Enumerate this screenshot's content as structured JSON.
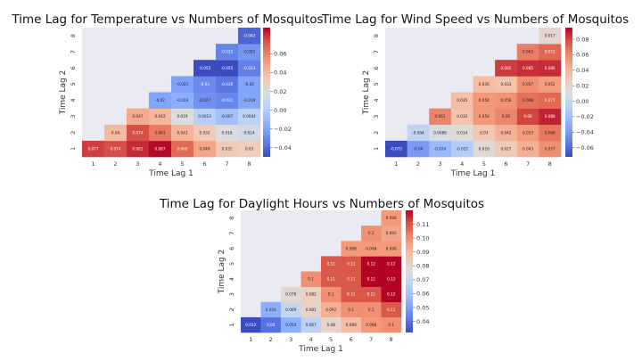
{
  "chart_data": [
    {
      "type": "heatmap",
      "title": "Time Lag for Temperature vs Numbers of Mosquitos",
      "xlabel": "Time Lag 1",
      "ylabel": "Time Lag 2",
      "x_ticks": [
        "1",
        "2",
        "3",
        "4",
        "5",
        "6",
        "7",
        "8"
      ],
      "y_ticks": [
        "1",
        "2",
        "3",
        "4",
        "5",
        "6",
        "7",
        "8"
      ],
      "colormap": "coolwarm",
      "vmin": -0.05,
      "vmax": 0.088,
      "colorbar_ticks": [
        "0.06",
        "0.04",
        "0.02",
        "0.00",
        "−0.02",
        "−0.04"
      ],
      "colorbar_tick_values": [
        0.06,
        0.04,
        0.02,
        0.0,
        -0.02,
        -0.04
      ],
      "rows": [
        {
          "y": "1",
          "values": [
            "0.077",
            "0.074",
            "0.081",
            "0.087",
            "0.068",
            "0.049",
            "0.032",
            "0.03"
          ]
        },
        {
          "y": "2",
          "values": [
            null,
            "0.04",
            "0.074",
            "0.063",
            "0.043",
            "0.032",
            "0.018",
            "0.014"
          ]
        },
        {
          "y": "3",
          "values": [
            null,
            null,
            "0.047",
            "0.042",
            "0.019",
            "0.0013",
            "-0.007",
            "0.0044"
          ]
        },
        {
          "y": "4",
          "values": [
            null,
            null,
            null,
            "-0.02",
            "-0.016",
            "-0.027",
            "-0.031",
            "-0.019"
          ]
        },
        {
          "y": "5",
          "values": [
            null,
            null,
            null,
            null,
            "-0.021",
            "-0.03",
            "-0.036",
            "-0.02"
          ]
        },
        {
          "y": "6",
          "values": [
            null,
            null,
            null,
            null,
            null,
            "-0.055",
            "-0.055",
            "-0.033"
          ]
        },
        {
          "y": "7",
          "values": [
            null,
            null,
            null,
            null,
            null,
            null,
            "-0.032",
            "-0.025"
          ]
        },
        {
          "y": "8",
          "values": [
            null,
            null,
            null,
            null,
            null,
            null,
            null,
            "-0.042"
          ]
        }
      ]
    },
    {
      "type": "heatmap",
      "title": "Time Lag for Wind Speed vs Numbers of Mosquitos",
      "xlabel": "Time Lag 1",
      "ylabel": "Time Lag 2",
      "x_ticks": [
        "1",
        "2",
        "3",
        "4",
        "5",
        "6",
        "7",
        "8"
      ],
      "y_ticks": [
        "1",
        "2",
        "3",
        "4",
        "5",
        "6",
        "7",
        "8"
      ],
      "colormap": "coolwarm",
      "vmin": -0.072,
      "vmax": 0.095,
      "colorbar_ticks": [
        "0.08",
        "0.06",
        "0.04",
        "0.02",
        "0.00",
        "−0.02",
        "−0.04",
        "−0.06"
      ],
      "colorbar_tick_values": [
        0.08,
        0.06,
        0.04,
        0.02,
        0.0,
        -0.02,
        -0.04,
        -0.06
      ],
      "rows": [
        {
          "y": "1",
          "values": [
            "-0.072",
            "-0.04",
            "-0.024",
            "-0.012",
            "0.016",
            "0.027",
            "0.043",
            "0.057"
          ]
        },
        {
          "y": "2",
          "values": [
            null,
            "-0.004",
            "0.0086",
            "0.014",
            "0.03",
            "0.042",
            "0.053",
            "0.066"
          ]
        },
        {
          "y": "3",
          "values": [
            null,
            null,
            "0.061",
            "0.032",
            "0.054",
            "0.06",
            "0.08",
            "0.088"
          ]
        },
        {
          "y": "4",
          "values": [
            null,
            null,
            null,
            "0.035",
            "0.054",
            "0.056",
            "0.068",
            "0.071"
          ]
        },
        {
          "y": "5",
          "values": [
            null,
            null,
            null,
            null,
            "0.036",
            "0.033",
            "0.057",
            "0.052"
          ]
        },
        {
          "y": "6",
          "values": [
            null,
            null,
            null,
            null,
            null,
            "0.082",
            "0.085",
            "0.086"
          ]
        },
        {
          "y": "7",
          "values": [
            null,
            null,
            null,
            null,
            null,
            null,
            "0.063",
            "0.072"
          ]
        },
        {
          "y": "8",
          "values": [
            null,
            null,
            null,
            null,
            null,
            null,
            null,
            "0.017"
          ]
        }
      ]
    },
    {
      "type": "heatmap",
      "title": "Time Lag for Daylight Hours vs Numbers of Mosquitos",
      "xlabel": "Time Lag 1",
      "ylabel": "Time Lag 2",
      "x_ticks": [
        "1",
        "2",
        "3",
        "4",
        "5",
        "6",
        "7",
        "8"
      ],
      "y_ticks": [
        "1",
        "2",
        "3",
        "4",
        "5",
        "6",
        "7",
        "8"
      ],
      "colormap": "coolwarm",
      "vmin": 0.032,
      "vmax": 0.12,
      "colorbar_ticks": [
        "0.11",
        "0.10",
        "0.09",
        "0.08",
        "0.07",
        "0.06",
        "0.05",
        "0.04"
      ],
      "colorbar_tick_values": [
        0.11,
        0.1,
        0.09,
        0.08,
        0.07,
        0.06,
        0.05,
        0.04
      ],
      "rows": [
        {
          "y": "1",
          "values": [
            "0.032",
            "0.04",
            "0.054",
            "0.067",
            "0.08",
            "0.089",
            "0.098",
            "0.1"
          ]
        },
        {
          "y": "2",
          "values": [
            null,
            "0.054",
            "0.069",
            "0.081",
            "0.092",
            "0.1",
            "0.1",
            "0.11"
          ]
        },
        {
          "y": "3",
          "values": [
            null,
            null,
            "0.078",
            "0.082",
            "0.1",
            "0.11",
            "0.11",
            "0.12"
          ]
        },
        {
          "y": "4",
          "values": [
            null,
            null,
            null,
            "0.1",
            "0.11",
            "0.11",
            "0.12",
            "0.12"
          ]
        },
        {
          "y": "5",
          "values": [
            null,
            null,
            null,
            null,
            "0.11",
            "0.11",
            "0.12",
            "0.12"
          ]
        },
        {
          "y": "6",
          "values": [
            null,
            null,
            null,
            null,
            null,
            "0.098",
            "0.098",
            "0.098"
          ]
        },
        {
          "y": "7",
          "values": [
            null,
            null,
            null,
            null,
            null,
            null,
            "0.1",
            "0.095"
          ]
        },
        {
          "y": "8",
          "values": [
            null,
            null,
            null,
            null,
            null,
            null,
            null,
            "0.098"
          ]
        }
      ]
    }
  ]
}
